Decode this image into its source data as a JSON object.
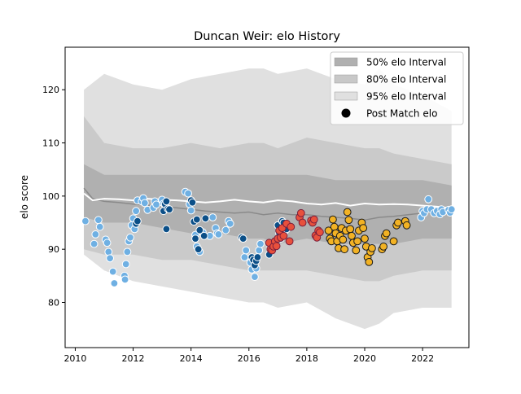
{
  "chart_data": {
    "type": "scatter",
    "title": "Duncan Weir: elo History",
    "xlabel": "",
    "ylabel": "elo score",
    "xlim": [
      2009.65,
      2023.6
    ],
    "ylim": [
      71.5,
      128
    ],
    "x_ticks": [
      2010,
      2012,
      2014,
      2016,
      2018,
      2020,
      2022
    ],
    "y_ticks": [
      80,
      90,
      100,
      110,
      120
    ],
    "legend_position": "top-right",
    "legend": [
      {
        "label": "50% elo Interval",
        "kind": "patch",
        "color": "#b0b0b0"
      },
      {
        "label": "80% elo Interval",
        "kind": "patch",
        "color": "#c8c8c8"
      },
      {
        "label": "95% elo Interval",
        "kind": "patch",
        "color": "#e0e0e0"
      },
      {
        "label": "Post Match elo",
        "kind": "marker",
        "color": "#000000"
      }
    ],
    "bands": {
      "x": [
        2010.3,
        2011.0,
        2012.0,
        2013.0,
        2014.0,
        2015.0,
        2016.0,
        2016.5,
        2017.0,
        2018.0,
        2019.0,
        2020.0,
        2020.5,
        2021.0,
        2022.0,
        2023.0
      ],
      "b95": {
        "color": "#e0e0e0",
        "upper": [
          120,
          123,
          121,
          120,
          122,
          123,
          124,
          124,
          123,
          124,
          122,
          121,
          124,
          121,
          119,
          116
        ],
        "lower": [
          89,
          86,
          84,
          83,
          82,
          81,
          80,
          80,
          79,
          80,
          77,
          75,
          76,
          78,
          79,
          79
        ]
      },
      "b80": {
        "color": "#cacaca",
        "upper": [
          115,
          110,
          109,
          109,
          110,
          109,
          110,
          110,
          109,
          111,
          110,
          109,
          109,
          108,
          107,
          106
        ],
        "lower": [
          90,
          89,
          89,
          88,
          88,
          87,
          86,
          86,
          86,
          86,
          85,
          84,
          84,
          85,
          86,
          86
        ]
      },
      "b50": {
        "color": "#b0b0b0",
        "upper": [
          106,
          104,
          104,
          104,
          104,
          104,
          104,
          104,
          104,
          104,
          103,
          103,
          103,
          103,
          103,
          102
        ],
        "lower": [
          96,
          95,
          95,
          94,
          93,
          93,
          92,
          92,
          91,
          92,
          91,
          91,
          91,
          91,
          92,
          92
        ]
      }
    },
    "lines": [
      {
        "name": "mean",
        "color": "#8a8a8a",
        "width": 1.5,
        "x": [
          2010.3,
          2010.6,
          2011.0,
          2011.5,
          2012.0,
          2012.5,
          2013.0,
          2013.5,
          2014.0,
          2014.5,
          2015.0,
          2015.5,
          2016.0,
          2016.5,
          2017.0,
          2017.5,
          2018.0,
          2018.5,
          2019.0,
          2019.5,
          2020.0,
          2020.5,
          2021.0,
          2021.5,
          2022.0,
          2022.5,
          2023.0
        ],
        "y": [
          101.5,
          99.5,
          99.0,
          98.8,
          98.5,
          98.3,
          98.0,
          97.8,
          97.5,
          97.2,
          97.0,
          96.8,
          97.0,
          96.5,
          96.8,
          96.5,
          96.5,
          96.2,
          96.0,
          95.8,
          95.5,
          96.0,
          96.2,
          96.5,
          96.8,
          97.0,
          97.0
        ]
      },
      {
        "name": "prior",
        "color": "#ffffff",
        "width": 2,
        "x": [
          2010.3,
          2010.6,
          2011.0,
          2011.5,
          2012.0,
          2012.5,
          2013.0,
          2013.5,
          2014.0,
          2014.5,
          2015.0,
          2015.5,
          2016.0,
          2016.5,
          2017.0,
          2017.5,
          2018.0,
          2018.5,
          2019.0,
          2019.5,
          2020.0,
          2020.5,
          2021.0,
          2021.5,
          2022.0,
          2022.5,
          2023.0
        ],
        "y": [
          100.5,
          99.2,
          99.5,
          99.4,
          99.2,
          99.5,
          99.3,
          99.2,
          99.0,
          98.8,
          99.0,
          99.3,
          99.0,
          98.8,
          99.2,
          99.0,
          98.6,
          98.4,
          98.7,
          98.2,
          98.6,
          98.4,
          98.5,
          98.4,
          98.2,
          98.0,
          97.7
        ]
      }
    ],
    "series": [
      {
        "fill": "#6fb0e3",
        "edge": "#ffffff",
        "points": [
          [
            2010.35,
            95.3
          ],
          [
            2010.65,
            91.0
          ],
          [
            2010.7,
            92.8
          ],
          [
            2010.8,
            95.5
          ],
          [
            2010.85,
            94.2
          ],
          [
            2011.05,
            91.8
          ],
          [
            2011.1,
            91.2
          ],
          [
            2011.15,
            89.5
          ],
          [
            2011.2,
            88.3
          ],
          [
            2011.3,
            85.8
          ],
          [
            2011.35,
            83.6
          ],
          [
            2011.7,
            85.0
          ],
          [
            2011.72,
            84.3
          ],
          [
            2011.75,
            87.2
          ],
          [
            2011.8,
            89.5
          ],
          [
            2011.85,
            91.5
          ],
          [
            2011.9,
            92.2
          ],
          [
            2011.95,
            94.5
          ],
          [
            2012.0,
            95.8
          ],
          [
            2012.05,
            93.8
          ],
          [
            2012.1,
            97.2
          ],
          [
            2012.15,
            99.2
          ],
          [
            2012.3,
            99.0
          ],
          [
            2012.35,
            99.6
          ],
          [
            2012.4,
            98.7
          ],
          [
            2012.5,
            97.4
          ],
          [
            2012.7,
            97.8
          ],
          [
            2012.75,
            99.0
          ],
          [
            2012.8,
            98.4
          ],
          [
            2013.0,
            99.3
          ],
          [
            2013.05,
            98.6
          ],
          [
            2013.8,
            100.8
          ],
          [
            2013.9,
            100.5
          ],
          [
            2013.95,
            98.5
          ],
          [
            2014.0,
            97.3
          ],
          [
            2014.15,
            92.7
          ],
          [
            2014.2,
            90.5
          ],
          [
            2014.3,
            89.5
          ],
          [
            2014.4,
            93.2
          ],
          [
            2014.65,
            92.5
          ],
          [
            2014.75,
            96.0
          ],
          [
            2014.85,
            94.0
          ],
          [
            2014.9,
            93.0
          ],
          [
            2014.95,
            92.8
          ],
          [
            2015.2,
            93.6
          ],
          [
            2015.3,
            95.3
          ],
          [
            2015.35,
            94.8
          ],
          [
            2015.85,
            88.5
          ],
          [
            2015.9,
            89.8
          ],
          [
            2016.05,
            87.5
          ],
          [
            2016.1,
            86.2
          ],
          [
            2016.2,
            84.8
          ],
          [
            2016.25,
            86.4
          ],
          [
            2016.35,
            89.8
          ],
          [
            2016.4,
            91.0
          ],
          [
            2021.95,
            96.0
          ],
          [
            2022.0,
            97.2
          ],
          [
            2022.05,
            96.8
          ],
          [
            2022.15,
            97.5
          ],
          [
            2022.2,
            99.4
          ],
          [
            2022.3,
            97.5
          ],
          [
            2022.4,
            96.8
          ],
          [
            2022.5,
            97.2
          ],
          [
            2022.6,
            96.6
          ],
          [
            2022.65,
            97.5
          ],
          [
            2022.7,
            97.0
          ],
          [
            2022.9,
            97.4
          ],
          [
            2022.95,
            96.9
          ],
          [
            2023.0,
            97.5
          ]
        ]
      },
      {
        "fill": "#0b4f88",
        "edge": "#ffffff",
        "points": [
          [
            2012.1,
            94.8
          ],
          [
            2012.15,
            95.3
          ],
          [
            2013.05,
            97.2
          ],
          [
            2013.1,
            98.5
          ],
          [
            2013.15,
            99.0
          ],
          [
            2013.2,
            97.6
          ],
          [
            2013.25,
            97.5
          ],
          [
            2013.15,
            93.8
          ],
          [
            2014.0,
            99.2
          ],
          [
            2014.05,
            98.8
          ],
          [
            2014.1,
            95.2
          ],
          [
            2014.15,
            92.0
          ],
          [
            2014.2,
            95.6
          ],
          [
            2014.25,
            90.0
          ],
          [
            2014.3,
            93.6
          ],
          [
            2014.45,
            92.5
          ],
          [
            2014.5,
            95.8
          ],
          [
            2015.75,
            92.2
          ],
          [
            2015.8,
            92.0
          ],
          [
            2016.1,
            88.5
          ],
          [
            2016.15,
            88.0
          ],
          [
            2016.2,
            87.0
          ],
          [
            2016.25,
            87.8
          ],
          [
            2016.3,
            88.5
          ],
          [
            2016.7,
            89.0
          ],
          [
            2016.75,
            90.5
          ],
          [
            2016.8,
            90.3
          ],
          [
            2016.9,
            90.8
          ],
          [
            2017.0,
            94.5
          ],
          [
            2017.05,
            93.0
          ],
          [
            2017.1,
            92.0
          ],
          [
            2017.15,
            95.3
          ],
          [
            2017.2,
            95.0
          ],
          [
            2017.25,
            93.5
          ],
          [
            2017.3,
            93.8
          ]
        ]
      },
      {
        "fill": "#e8503c",
        "edge": "#7a1f3d",
        "points": [
          [
            2016.7,
            91.2
          ],
          [
            2016.75,
            90.0
          ],
          [
            2016.8,
            89.8
          ],
          [
            2016.85,
            90.5
          ],
          [
            2016.9,
            91.5
          ],
          [
            2016.95,
            90.6
          ],
          [
            2017.0,
            92.0
          ],
          [
            2017.05,
            93.5
          ],
          [
            2017.1,
            92.2
          ],
          [
            2017.15,
            94.0
          ],
          [
            2017.2,
            92.5
          ],
          [
            2017.3,
            94.8
          ],
          [
            2017.4,
            91.5
          ],
          [
            2017.45,
            94.2
          ],
          [
            2017.75,
            96.0
          ],
          [
            2017.8,
            96.8
          ],
          [
            2017.85,
            95.0
          ],
          [
            2018.15,
            95.4
          ],
          [
            2018.2,
            95.0
          ],
          [
            2018.25,
            95.6
          ],
          [
            2018.3,
            92.6
          ],
          [
            2018.35,
            92.2
          ],
          [
            2018.4,
            93.5
          ],
          [
            2018.45,
            93.2
          ]
        ]
      },
      {
        "fill": "#f2b224",
        "edge": "#1a1a1a",
        "points": [
          [
            2018.75,
            93.5
          ],
          [
            2018.8,
            92.0
          ],
          [
            2018.85,
            91.5
          ],
          [
            2018.9,
            95.6
          ],
          [
            2018.95,
            94.2
          ],
          [
            2019.0,
            93.0
          ],
          [
            2019.05,
            91.5
          ],
          [
            2019.1,
            90.2
          ],
          [
            2019.15,
            92.5
          ],
          [
            2019.2,
            94.0
          ],
          [
            2019.25,
            91.8
          ],
          [
            2019.3,
            90.0
          ],
          [
            2019.35,
            93.5
          ],
          [
            2019.4,
            97.0
          ],
          [
            2019.45,
            95.5
          ],
          [
            2019.5,
            93.8
          ],
          [
            2019.55,
            92.5
          ],
          [
            2019.6,
            91.2
          ],
          [
            2019.7,
            89.8
          ],
          [
            2019.75,
            91.5
          ],
          [
            2019.8,
            93.5
          ],
          [
            2019.9,
            95.0
          ],
          [
            2019.95,
            94.0
          ],
          [
            2020.0,
            92.0
          ],
          [
            2020.05,
            90.5
          ],
          [
            2020.1,
            88.5
          ],
          [
            2020.15,
            87.6
          ],
          [
            2020.2,
            89.5
          ],
          [
            2020.25,
            90.2
          ],
          [
            2020.6,
            90.0
          ],
          [
            2020.65,
            90.5
          ],
          [
            2020.7,
            92.5
          ],
          [
            2020.75,
            93.0
          ],
          [
            2021.0,
            91.5
          ],
          [
            2021.1,
            94.5
          ],
          [
            2021.15,
            95.0
          ],
          [
            2021.4,
            95.3
          ],
          [
            2021.45,
            94.5
          ]
        ]
      }
    ]
  }
}
